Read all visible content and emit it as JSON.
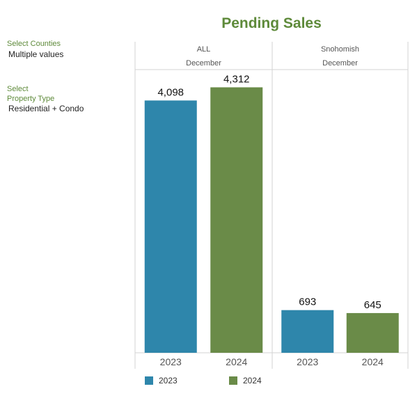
{
  "title": "Pending Sales",
  "filters": {
    "counties_label": "Select Counties",
    "counties_value": "Multiple values",
    "property_label_line1": "Select",
    "property_label_line2": "Property Type",
    "property_value": "Residential + Condo"
  },
  "colors": {
    "2023": "#2e86ab",
    "2024": "#6a8b48",
    "title": "#5e8a3a"
  },
  "chart_data": {
    "type": "bar",
    "panels": [
      {
        "region": "ALL",
        "month": "December",
        "categories": [
          "2023",
          "2024"
        ],
        "values": [
          4098,
          4312
        ],
        "labels": [
          "4,098",
          "4,312"
        ]
      },
      {
        "region": "Snohomish",
        "month": "December",
        "categories": [
          "2023",
          "2024"
        ],
        "values": [
          693,
          645
        ],
        "labels": [
          "693",
          "645"
        ]
      }
    ],
    "ylim": [
      0,
      4600
    ],
    "legend": {
      "position": "bottom",
      "entries": [
        "2023",
        "2024"
      ]
    },
    "grid": false
  }
}
